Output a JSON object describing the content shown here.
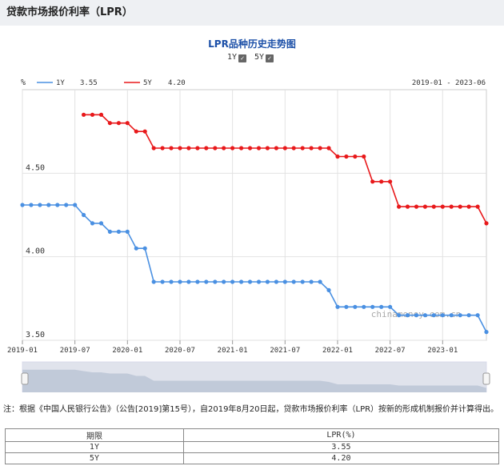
{
  "page": {
    "title": "贷款市场报价利率（LPR）",
    "note": "注：根据《中国人民银行公告》（公告[2019]第15号），自2019年8月20日起，贷款市场报价利率（LPR）按新的形成机制报价并计算得出。"
  },
  "toggles": [
    {
      "label": "1Y",
      "checked": true
    },
    {
      "label": "5Y",
      "checked": true
    }
  ],
  "chart_data": {
    "type": "line",
    "title": "LPR品种历史走势图",
    "unit_label": "%",
    "date_range": "2019-01 - 2023-06",
    "watermark": "chinamoney.com.cn",
    "ylim": [
      3.5,
      5.0
    ],
    "yticks": [
      "4.50",
      "4.00",
      "3.50"
    ],
    "xticks": [
      "2019-01",
      "2019-07",
      "2020-01",
      "2020-07",
      "2021-01",
      "2021-07",
      "2022-01",
      "2022-07",
      "2023-01"
    ],
    "x": [
      "2019-01",
      "2019-02",
      "2019-03",
      "2019-04",
      "2019-05",
      "2019-06",
      "2019-07",
      "2019-08",
      "2019-09",
      "2019-10",
      "2019-11",
      "2019-12",
      "2020-01",
      "2020-02",
      "2020-03",
      "2020-04",
      "2020-05",
      "2020-06",
      "2020-07",
      "2020-08",
      "2020-09",
      "2020-10",
      "2020-11",
      "2020-12",
      "2021-01",
      "2021-02",
      "2021-03",
      "2021-04",
      "2021-05",
      "2021-06",
      "2021-07",
      "2021-08",
      "2021-09",
      "2021-10",
      "2021-11",
      "2021-12",
      "2022-01",
      "2022-02",
      "2022-03",
      "2022-04",
      "2022-05",
      "2022-06",
      "2022-07",
      "2022-08",
      "2022-09",
      "2022-10",
      "2022-11",
      "2022-12",
      "2023-01",
      "2023-02",
      "2023-03",
      "2023-04",
      "2023-05",
      "2023-06"
    ],
    "series": [
      {
        "name": "1Y",
        "legend_value": "3.55",
        "color": "#4a90e2",
        "values": [
          4.31,
          4.31,
          4.31,
          4.31,
          4.31,
          4.31,
          4.31,
          4.25,
          4.2,
          4.2,
          4.15,
          4.15,
          4.15,
          4.05,
          4.05,
          3.85,
          3.85,
          3.85,
          3.85,
          3.85,
          3.85,
          3.85,
          3.85,
          3.85,
          3.85,
          3.85,
          3.85,
          3.85,
          3.85,
          3.85,
          3.85,
          3.85,
          3.85,
          3.85,
          3.85,
          3.8,
          3.7,
          3.7,
          3.7,
          3.7,
          3.7,
          3.7,
          3.7,
          3.65,
          3.65,
          3.65,
          3.65,
          3.65,
          3.65,
          3.65,
          3.65,
          3.65,
          3.65,
          3.55
        ]
      },
      {
        "name": "5Y",
        "legend_value": "4.20",
        "color": "#e8191b",
        "values": [
          null,
          null,
          null,
          null,
          null,
          null,
          null,
          4.85,
          4.85,
          4.85,
          4.8,
          4.8,
          4.8,
          4.75,
          4.75,
          4.65,
          4.65,
          4.65,
          4.65,
          4.65,
          4.65,
          4.65,
          4.65,
          4.65,
          4.65,
          4.65,
          4.65,
          4.65,
          4.65,
          4.65,
          4.65,
          4.65,
          4.65,
          4.65,
          4.65,
          4.65,
          4.6,
          4.6,
          4.6,
          4.6,
          4.45,
          4.45,
          4.45,
          4.3,
          4.3,
          4.3,
          4.3,
          4.3,
          4.3,
          4.3,
          4.3,
          4.3,
          4.3,
          4.2
        ]
      }
    ],
    "grid": true,
    "legend_placement": "top-left"
  },
  "table": {
    "headers": [
      "期限",
      "LPR(%)"
    ],
    "rows": [
      [
        "1Y",
        "3.55"
      ],
      [
        "5Y",
        "4.20"
      ]
    ]
  }
}
